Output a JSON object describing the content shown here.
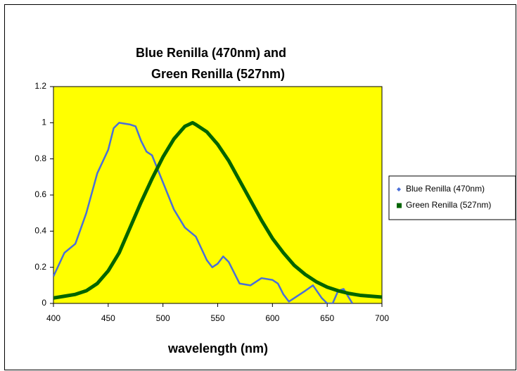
{
  "chart_data": {
    "type": "line",
    "title": [
      "Blue Renilla (470nm) and",
      "Green Renilla (527nm)"
    ],
    "x_label": "wavelength (nm)",
    "xlim": [
      400,
      700
    ],
    "xticks": [
      400,
      450,
      500,
      550,
      600,
      650,
      700
    ],
    "ylim": [
      0,
      1.2
    ],
    "yticks": [
      0,
      0.2,
      0.4,
      0.6,
      0.8,
      1,
      1.2
    ],
    "background": "#ffff00",
    "legend": "right",
    "series": [
      {
        "name": "Blue Renilla (470nm)",
        "color": "#4a6fd8",
        "x": [
          400,
          410,
          420,
          430,
          440,
          450,
          455,
          460,
          470,
          475,
          480,
          485,
          490,
          500,
          510,
          520,
          530,
          540,
          545,
          550,
          555,
          560,
          570,
          580,
          590,
          600,
          605,
          610,
          615,
          620,
          630,
          637,
          645,
          650,
          655,
          660,
          665,
          670,
          673
        ],
        "values": [
          0.15,
          0.28,
          0.33,
          0.5,
          0.72,
          0.85,
          0.97,
          1.0,
          0.99,
          0.98,
          0.9,
          0.84,
          0.82,
          0.67,
          0.52,
          0.42,
          0.37,
          0.24,
          0.2,
          0.22,
          0.26,
          0.23,
          0.11,
          0.1,
          0.14,
          0.13,
          0.11,
          0.05,
          0.01,
          0.03,
          0.07,
          0.1,
          0.03,
          0,
          0,
          0.07,
          0.08,
          0.03,
          0
        ]
      },
      {
        "name": "Green Renilla (527nm)",
        "color": "#006400",
        "x": [
          400,
          410,
          420,
          430,
          440,
          450,
          460,
          470,
          480,
          490,
          500,
          510,
          520,
          527,
          530,
          540,
          550,
          560,
          570,
          580,
          590,
          600,
          610,
          620,
          630,
          640,
          650,
          660,
          670,
          680,
          690,
          700
        ],
        "values": [
          0.03,
          0.04,
          0.05,
          0.07,
          0.11,
          0.18,
          0.28,
          0.42,
          0.56,
          0.69,
          0.81,
          0.91,
          0.98,
          1.0,
          0.99,
          0.95,
          0.88,
          0.79,
          0.68,
          0.57,
          0.46,
          0.36,
          0.28,
          0.21,
          0.16,
          0.12,
          0.09,
          0.07,
          0.055,
          0.045,
          0.04,
          0.035
        ]
      }
    ]
  }
}
